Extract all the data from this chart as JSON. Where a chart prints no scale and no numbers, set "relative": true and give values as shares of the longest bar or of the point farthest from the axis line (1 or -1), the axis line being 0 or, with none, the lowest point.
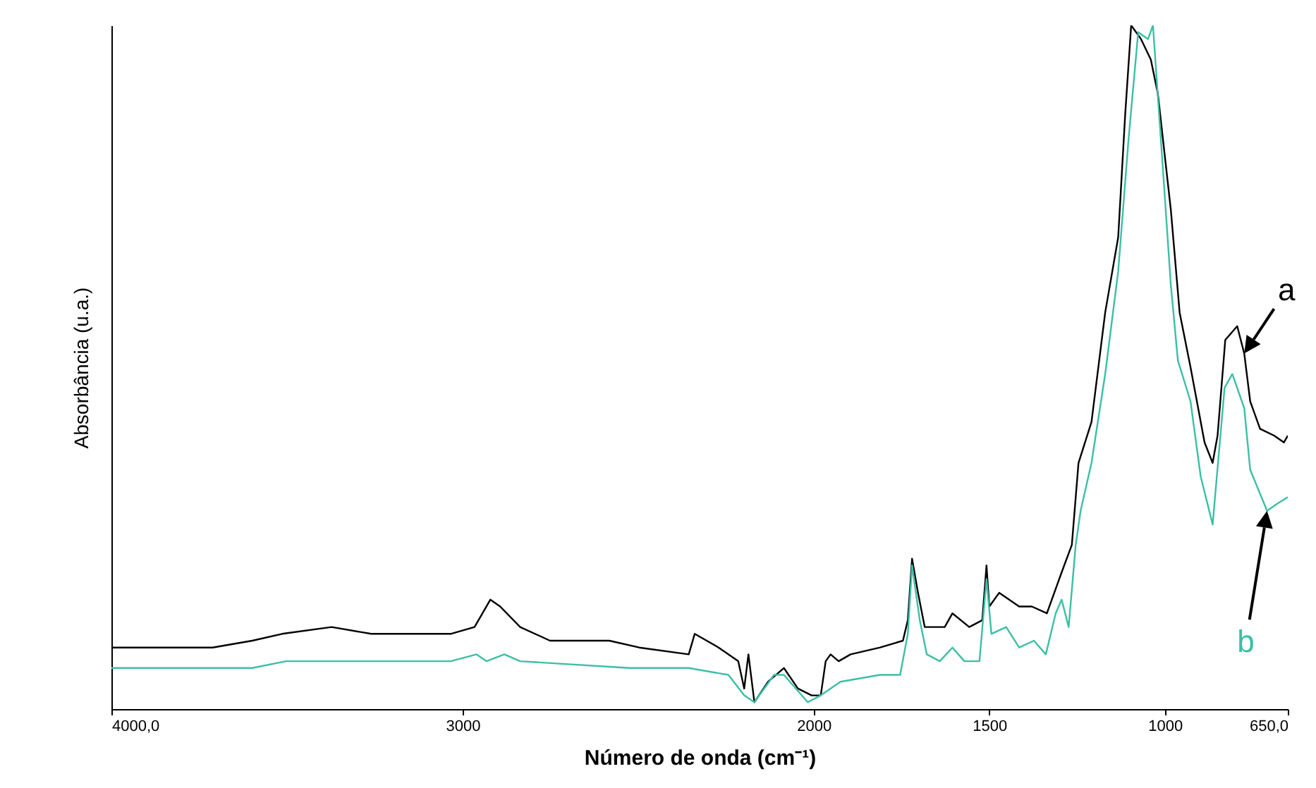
{
  "chart_data": {
    "type": "line",
    "xlabel": "Número de onda (cm⁻¹)",
    "ylabel": "Absorbância (u.a.)",
    "relative": true,
    "xlim": [
      4000,
      650
    ],
    "xticks": [
      {
        "value": 4000,
        "label": "4000,0"
      },
      3000,
      2000,
      1500,
      1000,
      {
        "value": 650,
        "label": "650,0"
      }
    ],
    "grid": false,
    "series": [
      {
        "name": "a",
        "color": "#000000",
        "x": [
          4000,
          3712,
          3599,
          3514,
          3373,
          3260,
          3034,
          2966,
          2921,
          2893,
          2836,
          2751,
          2582,
          2497,
          2356,
          2339,
          2271,
          2215,
          2198,
          2186,
          2169,
          2130,
          2085,
          2045,
          2006,
          1980,
          1966,
          1952,
          1929,
          1895,
          1811,
          1746,
          1732,
          1720,
          1703,
          1684,
          1627,
          1605,
          1557,
          1520,
          1508,
          1500,
          1472,
          1415,
          1379,
          1336,
          1294,
          1265,
          1246,
          1209,
          1170,
          1133,
          1113,
          1096,
          1068,
          1040,
          1020,
          983,
          958,
          927,
          887,
          864,
          850,
          828,
          794,
          774,
          757,
          729,
          689,
          661,
          650
        ],
        "values": [
          0.09,
          0.09,
          0.1,
          0.11,
          0.12,
          0.11,
          0.11,
          0.12,
          0.16,
          0.15,
          0.12,
          0.1,
          0.1,
          0.09,
          0.08,
          0.11,
          0.09,
          0.07,
          0.03,
          0.08,
          0.01,
          0.04,
          0.06,
          0.03,
          0.02,
          0.02,
          0.07,
          0.08,
          0.07,
          0.08,
          0.09,
          0.1,
          0.13,
          0.22,
          0.17,
          0.12,
          0.12,
          0.14,
          0.12,
          0.13,
          0.21,
          0.15,
          0.17,
          0.15,
          0.15,
          0.14,
          0.2,
          0.24,
          0.36,
          0.42,
          0.58,
          0.69,
          0.87,
          1.0,
          0.98,
          0.95,
          0.9,
          0.73,
          0.58,
          0.5,
          0.39,
          0.36,
          0.4,
          0.54,
          0.56,
          0.52,
          0.45,
          0.41,
          0.4,
          0.39,
          0.4
        ]
      },
      {
        "name": "b",
        "color": "#3bbfa5",
        "x": [
          4000,
          3599,
          3503,
          3260,
          3034,
          2960,
          2932,
          2881,
          2836,
          2525,
          2356,
          2243,
          2198,
          2169,
          2113,
          2085,
          2017,
          1980,
          1924,
          1811,
          1754,
          1732,
          1720,
          1698,
          1678,
          1641,
          1605,
          1571,
          1528,
          1508,
          1494,
          1452,
          1415,
          1373,
          1339,
          1311,
          1294,
          1274,
          1254,
          1240,
          1209,
          1170,
          1133,
          1104,
          1076,
          1048,
          1034,
          1011,
          983,
          963,
          927,
          898,
          864,
          830,
          808,
          774,
          757,
          709,
          681,
          650
        ],
        "values": [
          0.06,
          0.06,
          0.07,
          0.07,
          0.07,
          0.08,
          0.07,
          0.08,
          0.07,
          0.06,
          0.06,
          0.05,
          0.02,
          0.01,
          0.05,
          0.05,
          0.01,
          0.02,
          0.04,
          0.05,
          0.05,
          0.11,
          0.21,
          0.13,
          0.08,
          0.07,
          0.09,
          0.07,
          0.07,
          0.19,
          0.11,
          0.12,
          0.09,
          0.1,
          0.08,
          0.14,
          0.16,
          0.12,
          0.24,
          0.29,
          0.36,
          0.49,
          0.64,
          0.83,
          0.99,
          0.98,
          1.0,
          0.83,
          0.62,
          0.51,
          0.45,
          0.34,
          0.27,
          0.47,
          0.49,
          0.44,
          0.35,
          0.29,
          0.3,
          0.31
        ]
      }
    ]
  }
}
